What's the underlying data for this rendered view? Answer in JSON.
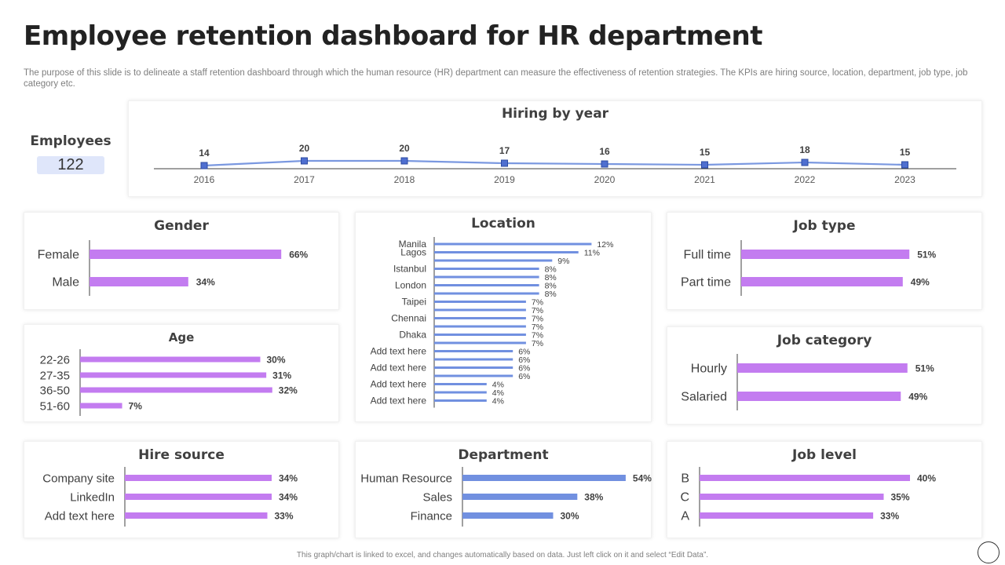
{
  "page": {
    "title": "Employee retention dashboard for HR department",
    "subtitle": "The purpose of this slide is to delineate a staff retention dashboard through which the human resource (HR) department can measure the effectiveness of retention strategies. The KPIs are hiring source, location, department, job type,  job category etc.",
    "footer": "This graph/chart is linked to excel, and changes automatically based on data. Just left click on it and select “Edit Data”."
  },
  "employees": {
    "label": "Employees",
    "value": "122"
  },
  "colors": {
    "purple": "#c37cf0",
    "blue": "#7190e0",
    "line": "#7a98e0",
    "marker_fill": "#4f6fd0",
    "axis": "#404040"
  },
  "chart_data": [
    {
      "id": "hiring",
      "type": "line",
      "title": "Hiring by year",
      "categories": [
        "2016",
        "2017",
        "2018",
        "2019",
        "2020",
        "2021",
        "2022",
        "2023"
      ],
      "values": [
        14,
        20,
        20,
        17,
        16,
        15,
        18,
        15
      ]
    },
    {
      "id": "gender",
      "type": "bar",
      "orientation": "horizontal",
      "title": "Gender",
      "categories": [
        "Female",
        "Male"
      ],
      "values": [
        66,
        34
      ],
      "unit": "%"
    },
    {
      "id": "age",
      "type": "bar",
      "orientation": "horizontal",
      "title": "Age",
      "categories": [
        "22-26",
        "27-35",
        "36-50",
        "51-60"
      ],
      "values": [
        30,
        31,
        32,
        7
      ],
      "unit": "%"
    },
    {
      "id": "location",
      "type": "bar",
      "orientation": "horizontal",
      "title": "Location",
      "categories": [
        "Manila",
        "Lagos",
        "",
        "Istanbul",
        "",
        "London",
        "",
        "Taipei",
        "",
        "Chennai",
        "",
        "Dhaka",
        "",
        "Add text here",
        "",
        "Add text here",
        "",
        "Add text here",
        "",
        "Add text here"
      ],
      "values": [
        12,
        11,
        9,
        8,
        8,
        8,
        8,
        7,
        7,
        7,
        7,
        7,
        7,
        6,
        6,
        6,
        6,
        4,
        4,
        4
      ],
      "unit": "%"
    },
    {
      "id": "jobtype",
      "type": "bar",
      "orientation": "horizontal",
      "title": "Job type",
      "categories": [
        "Full time",
        "Part time"
      ],
      "values": [
        51,
        49
      ],
      "unit": "%"
    },
    {
      "id": "jobcat",
      "type": "bar",
      "orientation": "horizontal",
      "title": "Job category",
      "categories": [
        "Hourly",
        "Salaried"
      ],
      "values": [
        51,
        49
      ],
      "unit": "%"
    },
    {
      "id": "hire",
      "type": "bar",
      "orientation": "horizontal",
      "title": "Hire source",
      "categories": [
        "Company site",
        "LinkedIn",
        "Add text here"
      ],
      "values": [
        34,
        34,
        33
      ],
      "unit": "%"
    },
    {
      "id": "dept",
      "type": "bar",
      "orientation": "horizontal",
      "title": "Department",
      "categories": [
        "Human Resource",
        "Sales",
        "Finance"
      ],
      "values": [
        54,
        38,
        30
      ],
      "unit": "%"
    },
    {
      "id": "joblevel",
      "type": "bar",
      "orientation": "horizontal",
      "title": "Job level",
      "categories": [
        "B",
        "C",
        "A"
      ],
      "values": [
        40,
        35,
        33
      ],
      "unit": "%"
    }
  ]
}
